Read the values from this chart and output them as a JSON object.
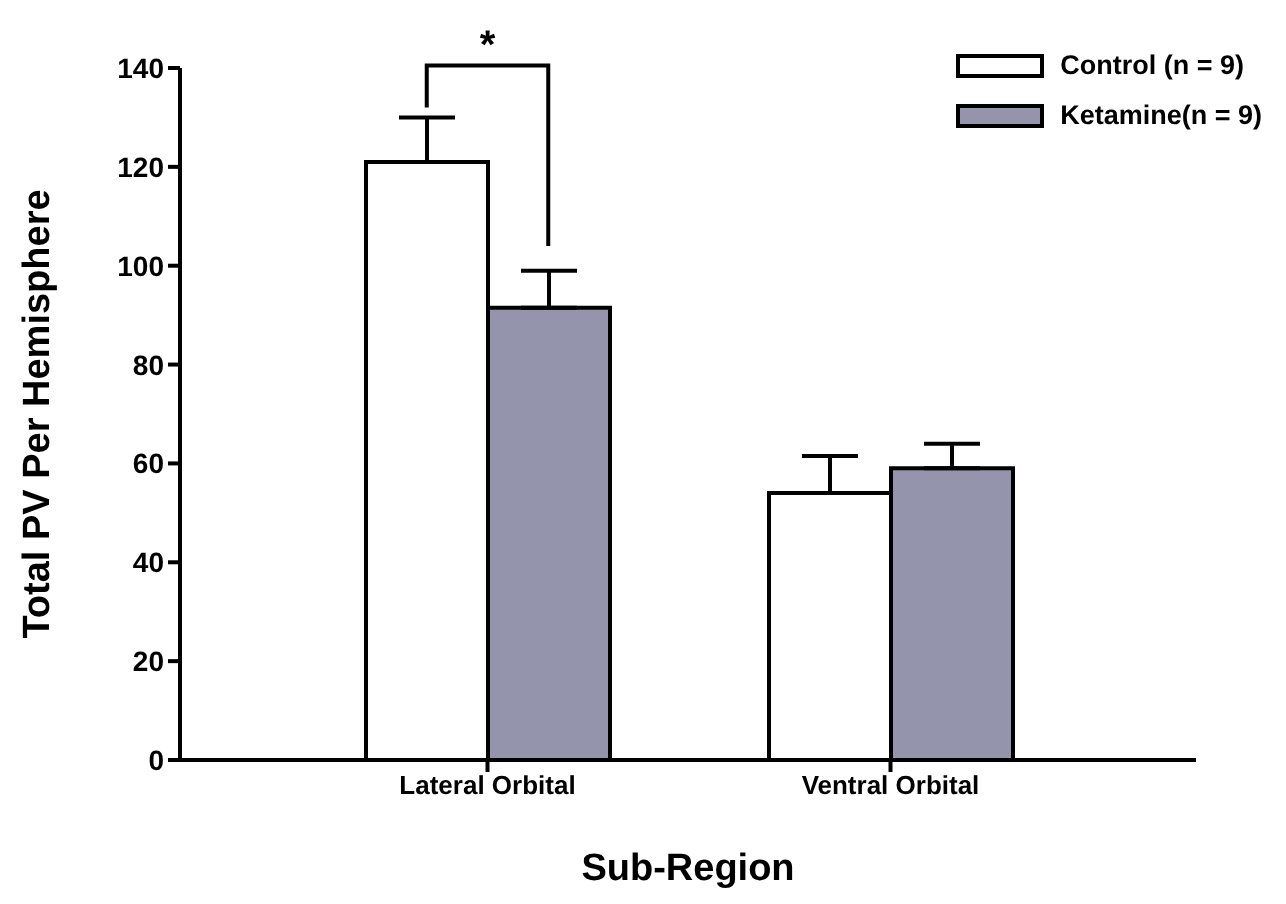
{
  "chart_data": {
    "type": "bar",
    "xlabel": "Sub-Region",
    "ylabel": "Total PV Per Hemisphere",
    "categories": [
      "Lateral Orbital",
      "Ventral Orbital"
    ],
    "series": [
      {
        "name": "Control (n = 9)",
        "color": "#ffffff",
        "values": [
          121,
          54
        ],
        "errors": [
          [
            121,
            130
          ],
          [
            54,
            61.5
          ]
        ]
      },
      {
        "name": "Ketamine(n = 9)",
        "color": "#9495ad",
        "values": [
          91.5,
          59
        ],
        "errors": [
          [
            91.5,
            99
          ],
          [
            59,
            64
          ]
        ]
      }
    ],
    "ylim": [
      0,
      140
    ],
    "yticks": [
      0,
      20,
      40,
      60,
      80,
      100,
      120,
      140
    ],
    "grid": false,
    "legend": "top right",
    "annotations": [
      "*"
    ]
  }
}
